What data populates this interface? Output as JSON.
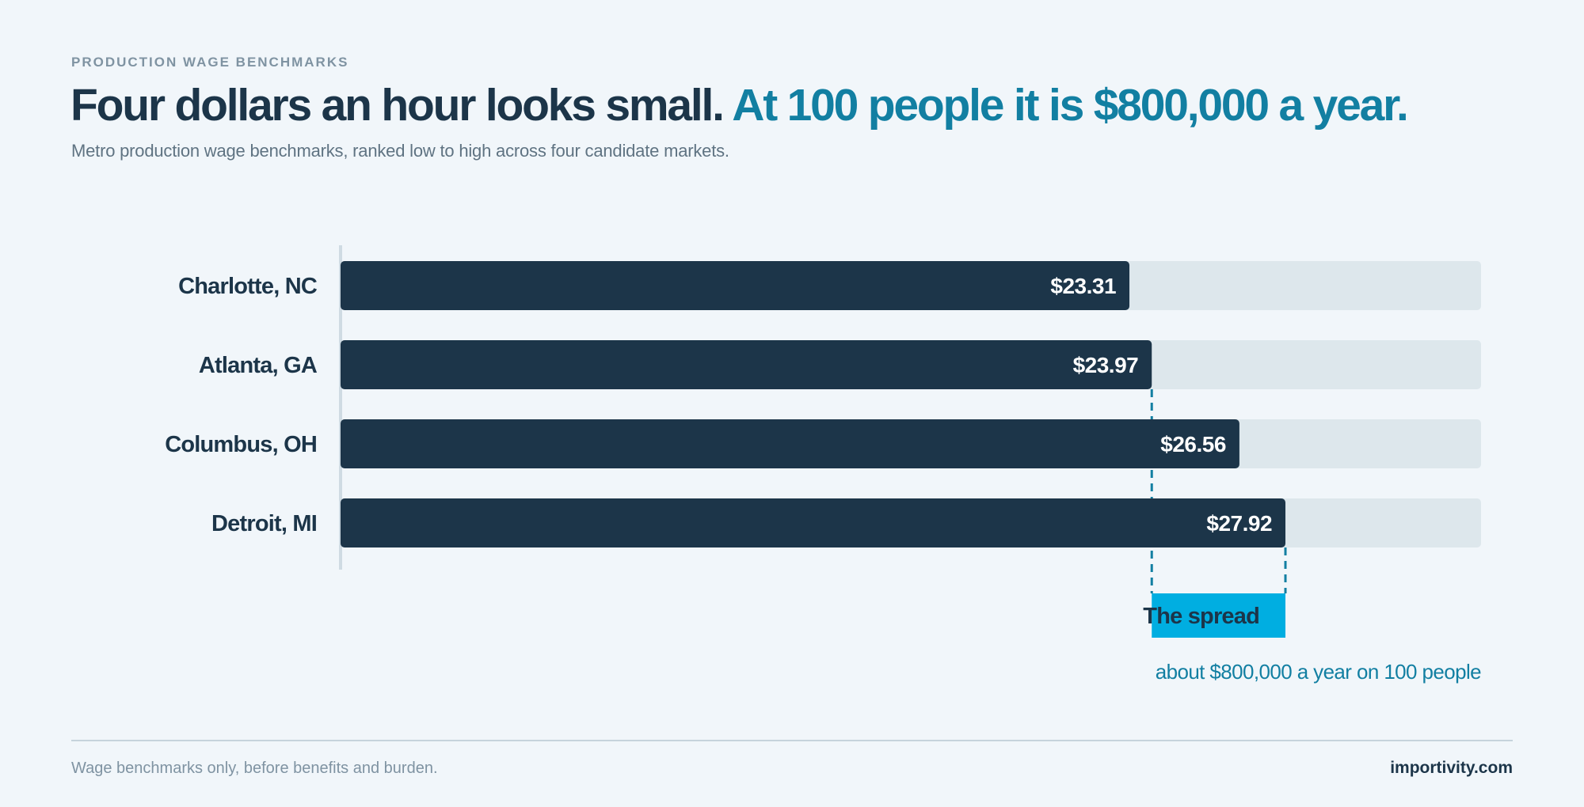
{
  "header": {
    "eyebrow": "PRODUCTION WAGE BENCHMARKS",
    "headline_lead": "Four dollars an hour looks small.",
    "headline_accent": "At 100 people it is $800,000 a year.",
    "subtitle": "Metro production wage benchmarks, ranked low to high across four candidate markets."
  },
  "chart_data": {
    "type": "bar",
    "orientation": "horizontal",
    "categories": [
      "Charlotte, NC",
      "Atlanta, GA",
      "Columbus, OH",
      "Detroit, MI"
    ],
    "values": [
      23.31,
      23.97,
      26.56,
      27.92
    ],
    "value_labels": [
      "$23.31",
      "$23.97",
      "$26.56",
      "$27.92"
    ],
    "xlim": [
      0,
      33.7
    ],
    "grid": false,
    "spread": {
      "label": "The spread",
      "from": 23.97,
      "to": 27.92,
      "annotation": "about $800,000 a year on 100 people"
    }
  },
  "colors": {
    "bar": "#1c3549",
    "track": "#dde7ec",
    "axis": "#cfdbe3",
    "spread": "#00aee1",
    "accent": "#127fa2",
    "label_text": "#ffffff"
  },
  "footer": {
    "note": "Wage benchmarks only, before benefits and burden.",
    "brand": "importivity.com"
  }
}
